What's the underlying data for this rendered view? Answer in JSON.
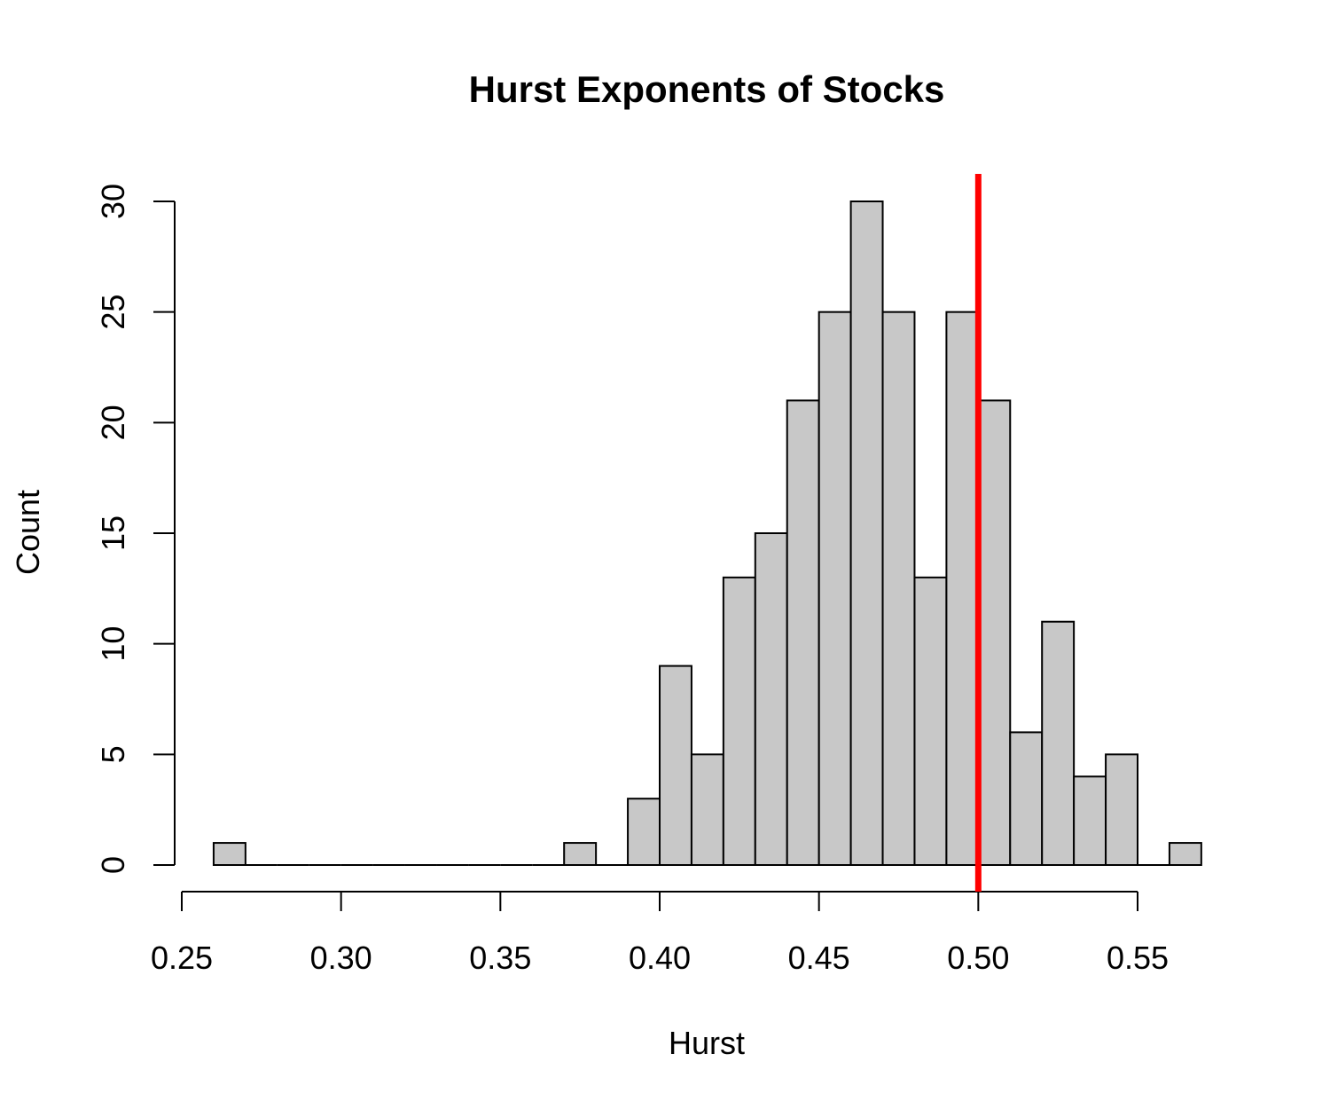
{
  "chart_data": {
    "type": "bar",
    "title": "Hurst Exponents of Stocks",
    "xlabel": "Hurst",
    "ylabel": "Count",
    "xlim": [
      0.25,
      0.57
    ],
    "ylim": [
      0,
      30
    ],
    "x_ticks": [
      "0.25",
      "0.30",
      "0.35",
      "0.40",
      "0.45",
      "0.50",
      "0.55"
    ],
    "y_ticks": [
      "0",
      "5",
      "10",
      "15",
      "20",
      "25",
      "30"
    ],
    "bin_width": 0.01,
    "bins": [
      {
        "start": 0.26,
        "count": 1
      },
      {
        "start": 0.27,
        "count": 0
      },
      {
        "start": 0.28,
        "count": 0
      },
      {
        "start": 0.29,
        "count": 0
      },
      {
        "start": 0.3,
        "count": 0
      },
      {
        "start": 0.31,
        "count": 0
      },
      {
        "start": 0.32,
        "count": 0
      },
      {
        "start": 0.33,
        "count": 0
      },
      {
        "start": 0.34,
        "count": 0
      },
      {
        "start": 0.35,
        "count": 0
      },
      {
        "start": 0.36,
        "count": 0
      },
      {
        "start": 0.37,
        "count": 1
      },
      {
        "start": 0.38,
        "count": 0
      },
      {
        "start": 0.39,
        "count": 3
      },
      {
        "start": 0.4,
        "count": 9
      },
      {
        "start": 0.41,
        "count": 5
      },
      {
        "start": 0.42,
        "count": 13
      },
      {
        "start": 0.43,
        "count": 15
      },
      {
        "start": 0.44,
        "count": 21
      },
      {
        "start": 0.45,
        "count": 25
      },
      {
        "start": 0.46,
        "count": 30
      },
      {
        "start": 0.47,
        "count": 25
      },
      {
        "start": 0.48,
        "count": 13
      },
      {
        "start": 0.49,
        "count": 25
      },
      {
        "start": 0.5,
        "count": 21
      },
      {
        "start": 0.51,
        "count": 6
      },
      {
        "start": 0.52,
        "count": 11
      },
      {
        "start": 0.53,
        "count": 4
      },
      {
        "start": 0.54,
        "count": 5
      },
      {
        "start": 0.55,
        "count": 0
      },
      {
        "start": 0.56,
        "count": 1
      }
    ],
    "reference_line": {
      "x": 0.5,
      "orientation": "vertical",
      "color": "#ff0000"
    },
    "bar_color": "#c8c8c8",
    "grid": false,
    "legend": "none"
  }
}
